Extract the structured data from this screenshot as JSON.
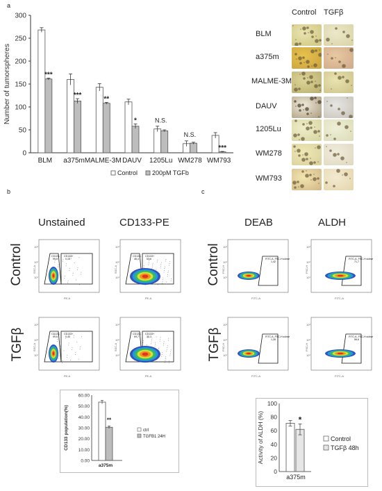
{
  "panel_a": {
    "letter": "a",
    "row_labels": [
      "BLM",
      "a375m",
      "MALME-3M",
      "DAUV",
      "1205Lu",
      "WM278",
      "WM793"
    ],
    "col_labels": [
      "Control",
      "TGFβ"
    ]
  },
  "panel_b": {
    "letter": "b",
    "col_titles": [
      "Unstained",
      "CD133-PE"
    ],
    "row_titles": [
      "Control",
      "TGFβ"
    ],
    "gate_labels": {
      "unstained_control": [
        "CD133-",
        "99,8",
        "CD133+",
        "0,15"
      ],
      "cd133_control": [
        "CD133-",
        "46,4",
        "CD133+",
        "53,6"
      ],
      "unstained_tgfb": [
        "CD133-",
        "99,6",
        "CD133+",
        "0,40"
      ],
      "cd133_tgfb": [
        "CD133-",
        "69,7",
        "CD133+",
        "30,3"
      ]
    }
  },
  "panel_c": {
    "letter": "c",
    "col_titles": [
      "DEAB",
      "ALDH"
    ],
    "row_titles": [
      "Control",
      "TGFβ"
    ],
    "gate_labels": {
      "deab_control": [
        "FITC-A, FSC-H subset",
        "1,42"
      ],
      "aldh_control": [
        "FITC-A, FSC-H subset",
        "71,7"
      ],
      "deab_tgfb": [
        "FITC-A, FSC-H subset",
        "1,26"
      ],
      "aldh_tgfb": [
        "FITC-A, FSC-H subset",
        "56,6"
      ]
    }
  },
  "chart_data": [
    {
      "type": "bar",
      "title": "",
      "xlabel": "",
      "ylabel": "Number of tumorspheres",
      "ylim": [
        0,
        300
      ],
      "yticks": [
        "0",
        "50",
        "100",
        "150",
        "200",
        "250",
        "300"
      ],
      "categories": [
        "BLM",
        "a375m",
        "MALME-3M",
        "DAUV",
        "1205Lu",
        "WM278",
        "WM793"
      ],
      "series": [
        {
          "name": "Control",
          "color": "#ffffff",
          "values": [
            268,
            160,
            143,
            111,
            52,
            20,
            38
          ],
          "errors": [
            5,
            12,
            8,
            6,
            6,
            6,
            6
          ]
        },
        {
          "name": "200pM TGFb",
          "color": "#bdbdbd",
          "values": [
            161,
            113,
            108,
            58,
            48,
            21,
            2
          ],
          "errors": [
            2,
            5,
            2,
            5,
            2,
            2,
            1
          ]
        }
      ],
      "annotations": [
        "***",
        "***",
        "**",
        "*",
        "N.S.",
        "N.S.",
        "***"
      ],
      "legend": "bottom"
    },
    {
      "type": "bar",
      "ylabel": "CD133 population(%)",
      "ylim": [
        0,
        60
      ],
      "yticks": [
        "0.00",
        "10.00",
        "20.00",
        "30.00",
        "40.00",
        "50.00",
        "60.00"
      ],
      "categories": [
        "a375m"
      ],
      "series": [
        {
          "name": "ctrl",
          "color": "#ffffff",
          "values": [
            53.6
          ],
          "errors": [
            1.5
          ]
        },
        {
          "name": "TGFB1 24H",
          "color": "#bdbdbd",
          "values": [
            30.5
          ],
          "errors": [
            1.2
          ]
        }
      ],
      "annotations": [
        "**"
      ],
      "legend": "right"
    },
    {
      "type": "bar",
      "ylabel": "Activity of ALDH (%)",
      "ylim": [
        0,
        100
      ],
      "yticks": [
        "0",
        "20",
        "40",
        "60",
        "80",
        "100"
      ],
      "categories": [
        "a375m"
      ],
      "series": [
        {
          "name": "Control",
          "color": "#ffffff",
          "values": [
            71
          ],
          "errors": [
            4
          ]
        },
        {
          "name": "TGFβ 48h",
          "color": "#e6e6e6",
          "values": [
            62
          ],
          "errors": [
            8
          ]
        }
      ],
      "annotations": [
        "*"
      ],
      "legend": "right"
    }
  ]
}
